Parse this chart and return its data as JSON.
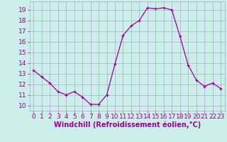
{
  "x": [
    0,
    1,
    2,
    3,
    4,
    5,
    6,
    7,
    8,
    9,
    10,
    11,
    12,
    13,
    14,
    15,
    16,
    17,
    18,
    19,
    20,
    21,
    22,
    23
  ],
  "y": [
    13.3,
    12.7,
    12.1,
    11.3,
    11.0,
    11.3,
    10.8,
    10.1,
    10.1,
    11.0,
    13.9,
    16.6,
    17.5,
    18.0,
    19.2,
    19.1,
    19.2,
    19.0,
    16.5,
    13.8,
    12.4,
    11.8,
    12.1,
    11.6
  ],
  "xlim": [
    -0.5,
    23.5
  ],
  "ylim": [
    9.5,
    19.8
  ],
  "yticks": [
    10,
    11,
    12,
    13,
    14,
    15,
    16,
    17,
    18,
    19
  ],
  "xticks": [
    0,
    1,
    2,
    3,
    4,
    5,
    6,
    7,
    8,
    9,
    10,
    11,
    12,
    13,
    14,
    15,
    16,
    17,
    18,
    19,
    20,
    21,
    22,
    23
  ],
  "xlabel": "Windchill (Refroidissement éolien,°C)",
  "line_color": "#990099",
  "marker": "+",
  "bg_color": "#cceee8",
  "grid_color": "#aaaacc",
  "tick_color": "#990099",
  "label_color": "#990099",
  "font_size": 6.5,
  "xlabel_fontsize": 7.0
}
